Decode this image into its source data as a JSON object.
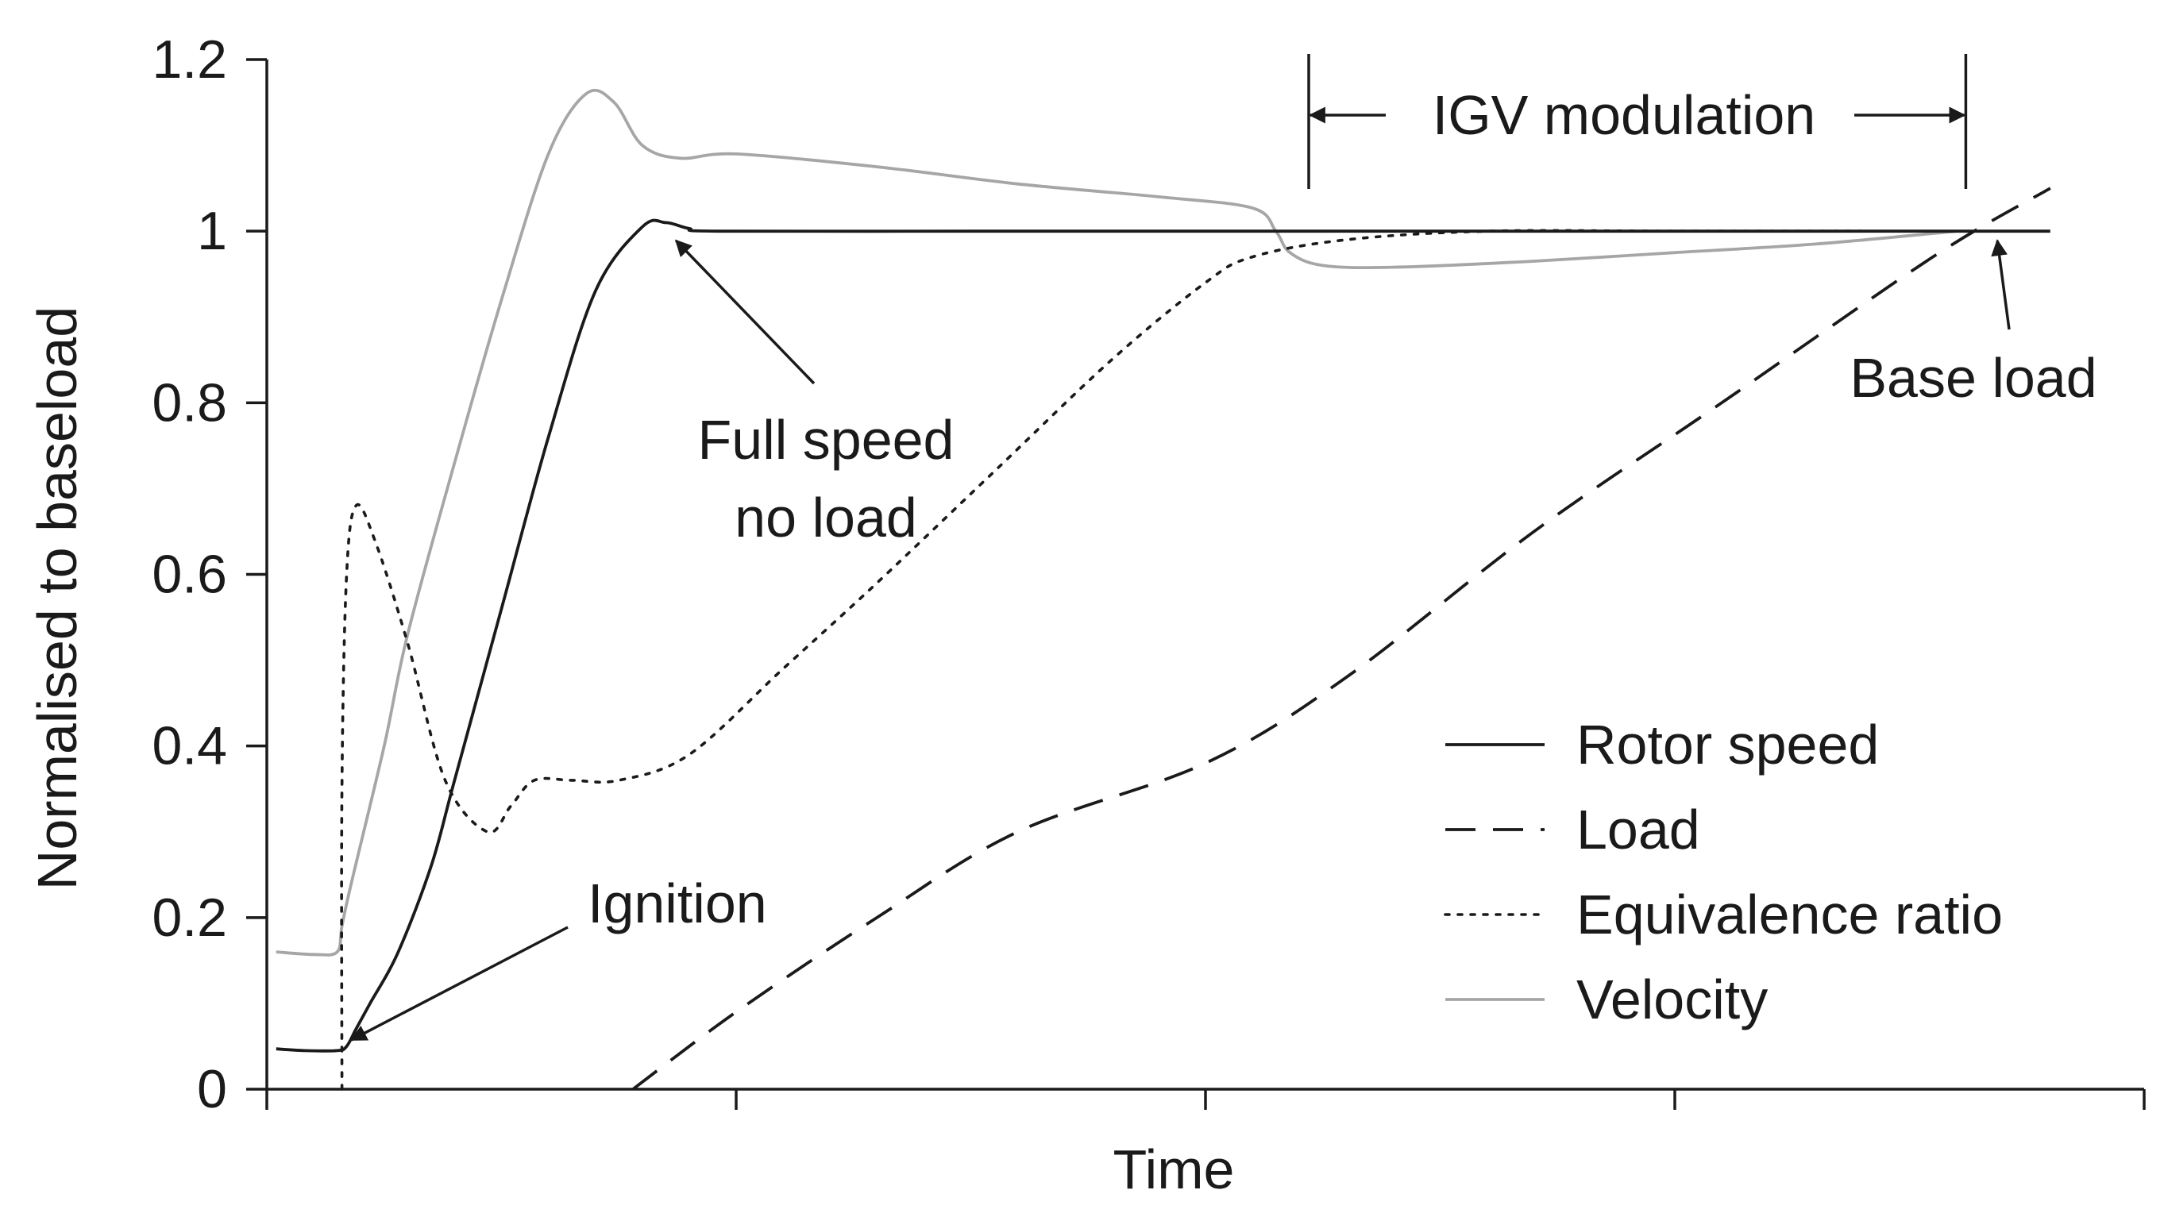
{
  "chart_data": {
    "type": "line",
    "title": "",
    "xlabel": "Time",
    "ylabel": "Normalised to baseload",
    "xlim": [
      0,
      4
    ],
    "ylim": [
      0,
      1.2
    ],
    "yticks": [
      0,
      0.2,
      0.4,
      0.6,
      0.8,
      1,
      1.2
    ],
    "ytick_labels": [
      "0",
      "0.2",
      "0.4",
      "0.6",
      "0.8",
      "1",
      "1.2"
    ],
    "xticks": [
      0,
      1,
      2,
      3,
      4
    ],
    "grid": false,
    "legend_position": "bottom-right",
    "series": [
      {
        "name": "Rotor speed",
        "style": "solid",
        "color": "#1a1a1a",
        "points": [
          [
            0.02,
            0.047
          ],
          [
            0.08,
            0.045
          ],
          [
            0.15,
            0.045
          ],
          [
            0.17,
            0.05
          ],
          [
            0.19,
            0.07
          ],
          [
            0.22,
            0.1
          ],
          [
            0.28,
            0.16
          ],
          [
            0.35,
            0.26
          ],
          [
            0.4,
            0.36
          ],
          [
            0.5,
            0.56
          ],
          [
            0.6,
            0.76
          ],
          [
            0.7,
            0.93
          ],
          [
            0.8,
            1.005
          ],
          [
            0.85,
            1.01
          ],
          [
            0.9,
            1.003
          ],
          [
            0.96,
            1.0
          ],
          [
            1.5,
            1.0
          ],
          [
            2.0,
            1.0
          ],
          [
            2.5,
            1.0
          ],
          [
            3.0,
            1.0
          ],
          [
            3.5,
            1.0
          ],
          [
            3.8,
            1.0
          ]
        ]
      },
      {
        "name": "Load",
        "style": "dashed",
        "color": "#1a1a1a",
        "points": [
          [
            0.78,
            0.0
          ],
          [
            1.0,
            0.09
          ],
          [
            1.3,
            0.2
          ],
          [
            1.6,
            0.3
          ],
          [
            2.0,
            0.38
          ],
          [
            2.3,
            0.48
          ],
          [
            2.7,
            0.65
          ],
          [
            3.1,
            0.8
          ],
          [
            3.55,
            0.97
          ],
          [
            3.8,
            1.05
          ]
        ]
      },
      {
        "name": "Equivalence ratio",
        "style": "dotted",
        "color": "#1a1a1a",
        "points": [
          [
            0.16,
            0.0
          ],
          [
            0.16,
            0.35
          ],
          [
            0.17,
            0.6
          ],
          [
            0.19,
            0.68
          ],
          [
            0.23,
            0.64
          ],
          [
            0.3,
            0.52
          ],
          [
            0.38,
            0.36
          ],
          [
            0.47,
            0.3
          ],
          [
            0.52,
            0.33
          ],
          [
            0.57,
            0.36
          ],
          [
            0.65,
            0.36
          ],
          [
            0.75,
            0.36
          ],
          [
            0.9,
            0.39
          ],
          [
            1.1,
            0.49
          ],
          [
            1.3,
            0.59
          ],
          [
            1.55,
            0.72
          ],
          [
            1.8,
            0.85
          ],
          [
            2.0,
            0.94
          ],
          [
            2.1,
            0.97
          ],
          [
            2.3,
            0.99
          ],
          [
            2.6,
            1.0
          ],
          [
            3.0,
            1.0
          ],
          [
            3.4,
            1.0
          ]
        ]
      },
      {
        "name": "Velocity",
        "style": "solid",
        "color": "#a6a6a6",
        "points": [
          [
            0.02,
            0.16
          ],
          [
            0.1,
            0.157
          ],
          [
            0.15,
            0.16
          ],
          [
            0.16,
            0.19
          ],
          [
            0.18,
            0.24
          ],
          [
            0.25,
            0.4
          ],
          [
            0.3,
            0.53
          ],
          [
            0.4,
            0.73
          ],
          [
            0.5,
            0.92
          ],
          [
            0.6,
            1.09
          ],
          [
            0.68,
            1.16
          ],
          [
            0.74,
            1.15
          ],
          [
            0.8,
            1.1
          ],
          [
            0.88,
            1.085
          ],
          [
            1.0,
            1.09
          ],
          [
            1.3,
            1.075
          ],
          [
            1.6,
            1.055
          ],
          [
            1.9,
            1.04
          ],
          [
            2.1,
            1.027
          ],
          [
            2.15,
            1.0
          ],
          [
            2.18,
            0.975
          ],
          [
            2.25,
            0.96
          ],
          [
            2.4,
            0.958
          ],
          [
            2.7,
            0.965
          ],
          [
            3.0,
            0.975
          ],
          [
            3.3,
            0.985
          ],
          [
            3.6,
            1.0
          ]
        ]
      }
    ],
    "annotations": [
      {
        "name": "ignition",
        "lines": [
          "Ignition"
        ],
        "target": [
          0.16,
          0.05
        ]
      },
      {
        "name": "full-speed-no-load",
        "lines": [
          "Full speed",
          "no load"
        ],
        "target": [
          0.96,
          1.0
        ]
      },
      {
        "name": "base-load",
        "lines": [
          "Base load"
        ],
        "target": [
          3.65,
          1.0
        ]
      },
      {
        "name": "igv-modulation",
        "lines": [
          "IGV modulation"
        ],
        "x_start": 2.22,
        "x_end": 3.62
      }
    ]
  }
}
